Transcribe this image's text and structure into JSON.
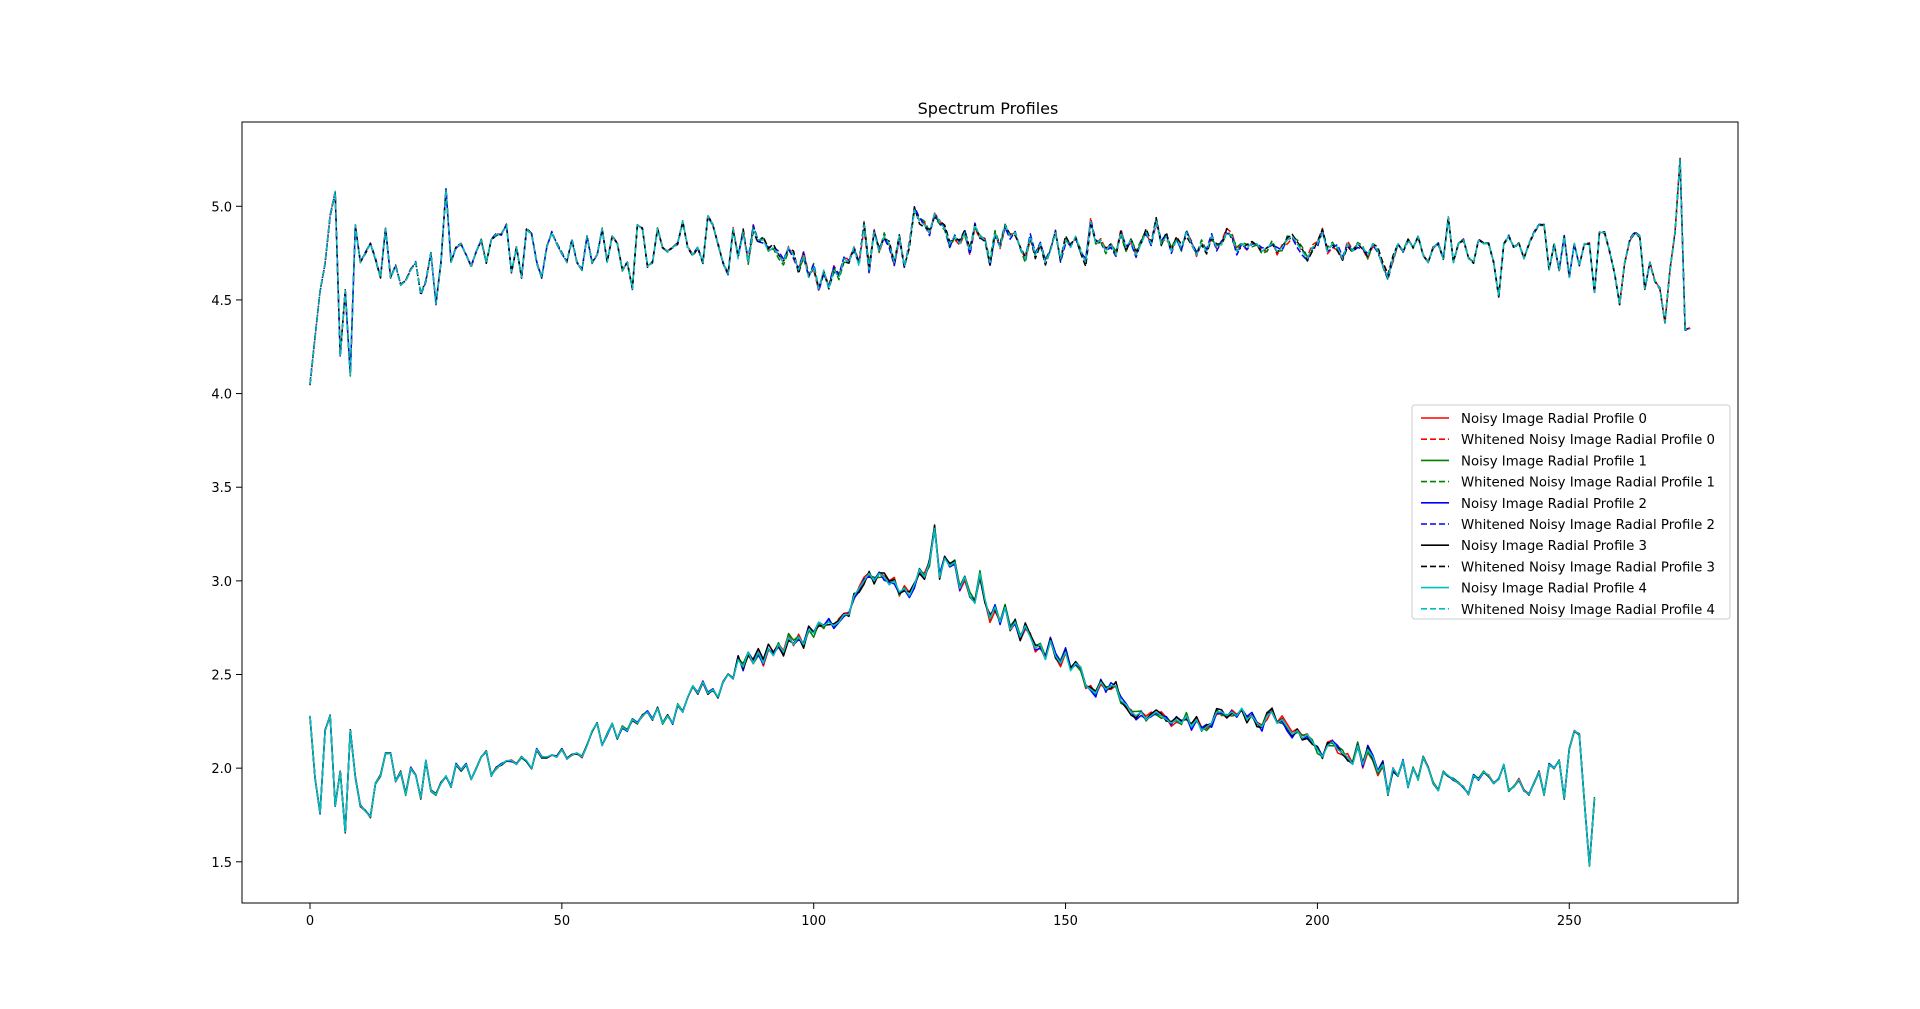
{
  "chart_data": {
    "type": "line",
    "title": "Spectrum Profiles",
    "xlabel": "",
    "ylabel": "",
    "xlim": [
      -13.5,
      283.5
    ],
    "ylim": [
      1.28,
      5.45
    ],
    "xticks": [
      0,
      50,
      100,
      150,
      200,
      250
    ],
    "yticks": [
      1.5,
      2.0,
      2.5,
      3.0,
      3.5,
      4.0,
      4.5,
      5.0
    ],
    "grid": false,
    "legend_position": "center-right",
    "x_start": 0,
    "x_step": 1,
    "upper_base": [
      4.05,
      4.3,
      4.55,
      4.7,
      4.95,
      5.08,
      4.2,
      4.55,
      4.1,
      4.9,
      4.7,
      4.75,
      4.8,
      4.72,
      4.62,
      4.88,
      4.62,
      4.68,
      4.58,
      4.6,
      4.66,
      4.7,
      4.53,
      4.6,
      4.75,
      4.48,
      4.7,
      5.09,
      4.7,
      4.78,
      4.8,
      4.74,
      4.68,
      4.76,
      4.82,
      4.7,
      4.82,
      4.85,
      4.85,
      4.9,
      4.65,
      4.78,
      4.62,
      4.88,
      4.85,
      4.7,
      4.62,
      4.78,
      4.86,
      4.8,
      4.75,
      4.7,
      4.82,
      4.7,
      4.66,
      4.84,
      4.7,
      4.74,
      4.88,
      4.7,
      4.84,
      4.8,
      4.66,
      4.7,
      4.56,
      4.9,
      4.88,
      4.68,
      4.7,
      4.88,
      4.78,
      4.76,
      4.78,
      4.8,
      4.92,
      4.78,
      4.74,
      4.78,
      4.7,
      4.95,
      4.9,
      4.8,
      4.7,
      4.64,
      4.88,
      4.72,
      4.86,
      4.7,
      4.88,
      4.82,
      4.82,
      4.76,
      4.78,
      4.74,
      4.7,
      4.78,
      4.74,
      4.66,
      4.74,
      4.62,
      4.68,
      4.56,
      4.66,
      4.56,
      4.66,
      4.62,
      4.72,
      4.7,
      4.78,
      4.68,
      4.9,
      4.66,
      4.86,
      4.76,
      4.84,
      4.8,
      4.7,
      4.84,
      4.68,
      4.8,
      4.98,
      4.92,
      4.9,
      4.86,
      4.96,
      4.92,
      4.88,
      4.8,
      4.84,
      4.8,
      4.86,
      4.76,
      4.9,
      4.84,
      4.82,
      4.7,
      4.86,
      4.78,
      4.9,
      4.84,
      4.86,
      4.78,
      4.72,
      4.84,
      4.74,
      4.8,
      4.7,
      4.76,
      4.86,
      4.72,
      4.82,
      4.78,
      4.84,
      4.76,
      4.7,
      4.92,
      4.8,
      4.82,
      4.76,
      4.8,
      4.74,
      4.86,
      4.78,
      4.82,
      4.74,
      4.8,
      4.86,
      4.8,
      4.92,
      4.8,
      4.84,
      4.76,
      4.82,
      4.78,
      4.86,
      4.8,
      4.74,
      4.8,
      4.76,
      4.84,
      4.78,
      4.8,
      4.86,
      4.84,
      4.76,
      4.8,
      4.78,
      4.8,
      4.8,
      4.76,
      4.78,
      4.8,
      4.76,
      4.78,
      4.82,
      4.84,
      4.8,
      4.76,
      4.72,
      4.78,
      4.8,
      4.86,
      4.76,
      4.8,
      4.78,
      4.72,
      4.8,
      4.76,
      4.8,
      4.78,
      4.74,
      4.8,
      4.76,
      4.68,
      4.62,
      4.72,
      4.8,
      4.76,
      4.82,
      4.78,
      4.84,
      4.74,
      4.7,
      4.78,
      4.8,
      4.72,
      4.94,
      4.7,
      4.8,
      4.82,
      4.72,
      4.7,
      4.82,
      4.8,
      4.8,
      4.7,
      4.52,
      4.8,
      4.84,
      4.78,
      4.8,
      4.72,
      4.8,
      4.86,
      4.9,
      4.9,
      4.66,
      4.8,
      4.66,
      4.84,
      4.62,
      4.8,
      4.68,
      4.8,
      4.8,
      4.54,
      4.86,
      4.86,
      4.76,
      4.64,
      4.48,
      4.7,
      4.82,
      4.86,
      4.84,
      4.56,
      4.7,
      4.6,
      4.56,
      4.38,
      4.66,
      4.86,
      5.25,
      4.34,
      4.35
    ],
    "lower_base": [
      2.28,
      1.95,
      1.76,
      2.2,
      2.28,
      1.8,
      1.98,
      1.66,
      2.2,
      1.95,
      1.8,
      1.77,
      1.74,
      1.92,
      1.96,
      2.08,
      2.08,
      1.93,
      1.98,
      1.86,
      2.0,
      1.96,
      1.84,
      2.04,
      1.88,
      1.86,
      1.92,
      1.96,
      1.9,
      2.02,
      1.99,
      2.02,
      1.94,
      2.0,
      2.06,
      2.09,
      1.96,
      2.0,
      2.02,
      2.04,
      2.04,
      2.02,
      2.06,
      2.04,
      2.0,
      2.1,
      2.06,
      2.06,
      2.07,
      2.06,
      2.1,
      2.05,
      2.07,
      2.08,
      2.06,
      2.12,
      2.2,
      2.24,
      2.12,
      2.18,
      2.24,
      2.16,
      2.22,
      2.2,
      2.26,
      2.24,
      2.28,
      2.3,
      2.26,
      2.32,
      2.24,
      2.28,
      2.24,
      2.34,
      2.3,
      2.38,
      2.44,
      2.4,
      2.46,
      2.4,
      2.42,
      2.38,
      2.46,
      2.5,
      2.48,
      2.58,
      2.54,
      2.62,
      2.56,
      2.62,
      2.56,
      2.64,
      2.6,
      2.66,
      2.62,
      2.7,
      2.66,
      2.7,
      2.66,
      2.74,
      2.72,
      2.78,
      2.76,
      2.78,
      2.76,
      2.78,
      2.82,
      2.82,
      2.92,
      2.96,
      3.0,
      3.04,
      3.0,
      3.04,
      3.02,
      2.98,
      3.0,
      2.94,
      2.96,
      2.92,
      2.98,
      3.06,
      3.02,
      3.1,
      3.28,
      3.02,
      3.12,
      3.08,
      3.1,
      2.96,
      3.02,
      2.92,
      2.88,
      3.04,
      2.9,
      2.8,
      2.86,
      2.78,
      2.86,
      2.74,
      2.78,
      2.7,
      2.76,
      2.7,
      2.64,
      2.66,
      2.58,
      2.68,
      2.6,
      2.56,
      2.62,
      2.52,
      2.56,
      2.54,
      2.44,
      2.42,
      2.4,
      2.46,
      2.42,
      2.44,
      2.44,
      2.36,
      2.34,
      2.3,
      2.28,
      2.3,
      2.26,
      2.28,
      2.3,
      2.28,
      2.26,
      2.24,
      2.26,
      2.24,
      2.28,
      2.22,
      2.26,
      2.2,
      2.22,
      2.24,
      2.3,
      2.3,
      2.28,
      2.3,
      2.28,
      2.32,
      2.26,
      2.28,
      2.24,
      2.22,
      2.28,
      2.3,
      2.24,
      2.26,
      2.22,
      2.18,
      2.2,
      2.16,
      2.18,
      2.14,
      2.1,
      2.06,
      2.12,
      2.14,
      2.1,
      2.08,
      2.06,
      2.02,
      2.12,
      2.02,
      2.1,
      2.06,
      1.98,
      2.02,
      1.86,
      2.0,
      1.96,
      2.04,
      1.9,
      2.0,
      1.94,
      2.06,
      2.0,
      1.92,
      1.88,
      1.98,
      1.96,
      1.94,
      1.92,
      1.9,
      1.86,
      1.96,
      1.94,
      1.98,
      1.96,
      1.92,
      1.94,
      2.02,
      1.88,
      1.9,
      1.94,
      1.88,
      1.86,
      1.92,
      1.98,
      1.86,
      2.02,
      2.0,
      2.04,
      1.84,
      2.1,
      2.2,
      2.18,
      1.82,
      1.48,
      1.84
    ],
    "series": [
      {
        "name": "Noisy Image Radial Profile 0",
        "color": "#ff0000",
        "dashed": false
      },
      {
        "name": "Whitened Noisy Image Radial Profile 0",
        "color": "#ff0000",
        "dashed": true
      },
      {
        "name": "Noisy Image Radial Profile 1",
        "color": "#008000",
        "dashed": false
      },
      {
        "name": "Whitened Noisy Image Radial Profile 1",
        "color": "#008000",
        "dashed": true
      },
      {
        "name": "Noisy Image Radial Profile 2",
        "color": "#0000ff",
        "dashed": false
      },
      {
        "name": "Whitened Noisy Image Radial Profile 2",
        "color": "#0000ff",
        "dashed": true
      },
      {
        "name": "Noisy Image Radial Profile 3",
        "color": "#000000",
        "dashed": false
      },
      {
        "name": "Whitened Noisy Image Radial Profile 3",
        "color": "#000000",
        "dashed": true
      },
      {
        "name": "Noisy Image Radial Profile 4",
        "color": "#00bfbf",
        "dashed": false
      },
      {
        "name": "Whitened Noisy Image Radial Profile 4",
        "color": "#00bfbf",
        "dashed": true
      }
    ],
    "notes_on_structure": "Solid (Noisy) series follow the lower profile; dashed (Whitened) series follow the upper profile. Series differ by small noise around the base values."
  }
}
